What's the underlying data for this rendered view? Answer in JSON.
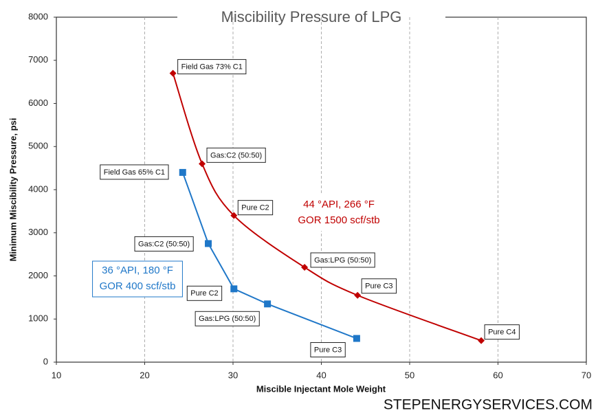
{
  "chart_data": {
    "type": "line",
    "title": "Miscibility Pressure of LPG",
    "x_label": "Miscible Injectant Mole Weight",
    "y_label": "Minimum Miscibility Pressure, psi",
    "xlim": [
      10,
      70
    ],
    "xticks": [
      10,
      20,
      30,
      40,
      50,
      60,
      70
    ],
    "ylim": [
      0,
      8000
    ],
    "yticks": [
      0,
      1000,
      2000,
      3000,
      4000,
      5000,
      6000,
      7000,
      8000
    ],
    "grid": "x",
    "series": [
      {
        "color": "#c00000",
        "marker": "diamond",
        "smooth": true,
        "x": [
          23.2,
          26.5,
          30.1,
          38.1,
          44.1,
          58.1
        ],
        "values": [
          6700,
          4600,
          3400,
          2200,
          1550,
          500
        ],
        "point_labels": [
          "Field Gas 73% C1",
          "Gas:C2 (50:50)",
          "Pure C2",
          "Gas:LPG (50:50)",
          "Pure C3",
          "Pure C4"
        ]
      },
      {
        "color": "#1f77c8",
        "marker": "square",
        "smooth": false,
        "x": [
          24.3,
          27.2,
          30.1,
          33.9,
          44.0
        ],
        "values": [
          4400,
          2750,
          1700,
          1350,
          550
        ],
        "point_labels": [
          "Field Gas 65% C1",
          "Gas:C2 (50:50)",
          "Pure C2",
          "Gas:LPG (50:50)",
          "Pure C3"
        ]
      }
    ],
    "annotations": [
      {
        "color": "#c00000",
        "lines": [
          "44 °API, 266 °F",
          "GOR 1500 scf/stb"
        ]
      },
      {
        "color": "#1f77c8",
        "lines": [
          "36 °API, 180 °F",
          "GOR 400 scf/stb"
        ]
      }
    ],
    "watermark": "STEPENERGYSERVICES.COM"
  }
}
